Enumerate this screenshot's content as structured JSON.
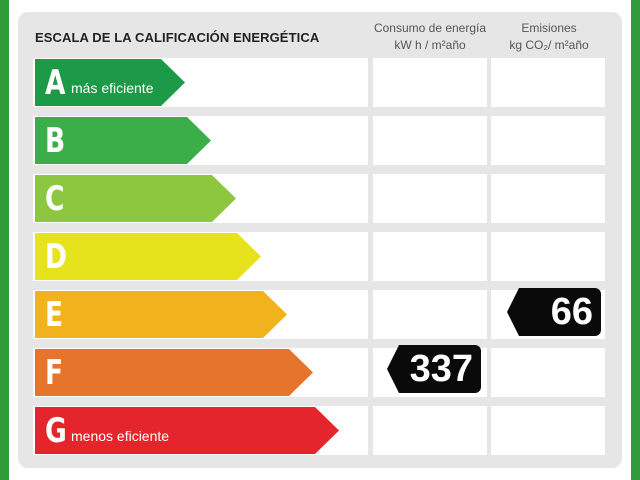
{
  "title": "ESCALA DE LA CALIFICACIÓN ENERGÉTICA",
  "columns": {
    "energy": {
      "line1": "Consumo de energía",
      "line2": "kW h / m²año"
    },
    "emissions": {
      "line1": "Emisiones",
      "line2": "kg CO₂/ m²año"
    }
  },
  "ratings": [
    {
      "letter": "A",
      "label": "más eficiente",
      "color": "#1c9a48"
    },
    {
      "letter": "B",
      "label": "",
      "color": "#3cae49"
    },
    {
      "letter": "C",
      "label": "",
      "color": "#8dc63f"
    },
    {
      "letter": "D",
      "label": "",
      "color": "#e6e31c"
    },
    {
      "letter": "E",
      "label": "",
      "color": "#f2b21b"
    },
    {
      "letter": "F",
      "label": "",
      "color": "#e6742a"
    },
    {
      "letter": "G",
      "label": "menos eficiente",
      "color": "#e4262c"
    }
  ],
  "energy_value": {
    "rating": "F",
    "value": "337"
  },
  "emissions_value": {
    "rating": "E",
    "value": "66"
  }
}
